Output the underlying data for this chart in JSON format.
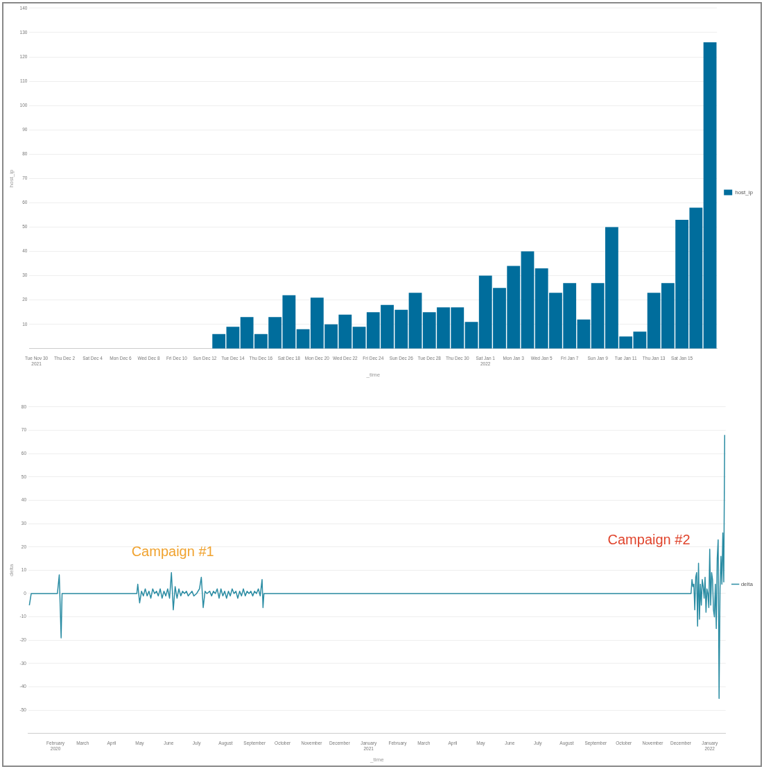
{
  "chart_data": [
    {
      "type": "bar",
      "categories": [
        "Tue Nov 30\n2021",
        null,
        "Thu Dec 2",
        null,
        "Sat Dec 4",
        null,
        "Mon Dec 6",
        null,
        "Wed Dec 8",
        null,
        "Fri Dec 10",
        null,
        "Sun Dec 12",
        null,
        "Tue Dec 14",
        null,
        "Thu Dec 16",
        null,
        "Sat Dec 18",
        null,
        "Mon Dec 20",
        null,
        "Wed Dec 22",
        null,
        "Fri Dec 24",
        null,
        "Sun Dec 26",
        null,
        "Tue Dec 28",
        null,
        "Thu Dec 30",
        null,
        "Sat Jan 1\n2022",
        null,
        "Mon Jan 3",
        null,
        "Wed Jan 5",
        null,
        "Fri Jan 7",
        null,
        "Sun Jan 9",
        null,
        "Tue Jan 11",
        null,
        "Thu Jan 13",
        null,
        "Sat Jan 15",
        null,
        null
      ],
      "series": [
        {
          "name": "host_ip",
          "color": "#006d9c",
          "values": [
            null,
            null,
            null,
            null,
            null,
            null,
            null,
            null,
            null,
            null,
            null,
            null,
            null,
            6,
            9,
            13,
            6,
            13,
            22,
            8,
            21,
            10,
            14,
            9,
            15,
            18,
            16,
            23,
            15,
            17,
            17,
            11,
            30,
            25,
            34,
            40,
            33,
            23,
            27,
            12,
            27,
            50,
            5,
            7,
            23,
            27,
            53,
            58,
            126
          ]
        }
      ],
      "xlabel": "_time",
      "ylabel": "host_ip",
      "ylim": [
        0,
        140
      ],
      "yticks": [
        10,
        20,
        30,
        40,
        50,
        60,
        70,
        80,
        90,
        100,
        110,
        120,
        130,
        140
      ],
      "grid": "y",
      "legend": "right"
    },
    {
      "type": "line",
      "xlabel": "_time",
      "ylabel": "delta",
      "xlim": [
        "2020-01-03",
        "2022-01-18"
      ],
      "xticks": [
        {
          "value": "2020-02",
          "label": "February\n2020"
        },
        {
          "value": "2020-03",
          "label": "March"
        },
        {
          "value": "2020-04",
          "label": "April"
        },
        {
          "value": "2020-05",
          "label": "May"
        },
        {
          "value": "2020-06",
          "label": "June"
        },
        {
          "value": "2020-07",
          "label": "July"
        },
        {
          "value": "2020-08",
          "label": "August"
        },
        {
          "value": "2020-09",
          "label": "September"
        },
        {
          "value": "2020-10",
          "label": "October"
        },
        {
          "value": "2020-11",
          "label": "November"
        },
        {
          "value": "2020-12",
          "label": "December"
        },
        {
          "value": "2021-01",
          "label": "January\n2021"
        },
        {
          "value": "2021-02",
          "label": "February"
        },
        {
          "value": "2021-03",
          "label": "March"
        },
        {
          "value": "2021-04",
          "label": "April"
        },
        {
          "value": "2021-05",
          "label": "May"
        },
        {
          "value": "2021-06",
          "label": "June"
        },
        {
          "value": "2021-07",
          "label": "July"
        },
        {
          "value": "2021-08",
          "label": "August"
        },
        {
          "value": "2021-09",
          "label": "September"
        },
        {
          "value": "2021-10",
          "label": "October"
        },
        {
          "value": "2021-11",
          "label": "November"
        },
        {
          "value": "2021-12",
          "label": "December"
        },
        {
          "value": "2022-01",
          "label": "January\n2022"
        }
      ],
      "ylim": [
        -60,
        80
      ],
      "yticks": [
        -50,
        -40,
        -30,
        -20,
        -10,
        0,
        10,
        20,
        30,
        40,
        50,
        60,
        70,
        80
      ],
      "grid": "y",
      "legend": "right",
      "marker": "none",
      "x": [
        "2020-01-04",
        "2020-01-06",
        "2020-02-03",
        "2020-02-05",
        "2020-02-07",
        "2020-02-08",
        "2020-04-28",
        "2020-04-29",
        "2020-05-01",
        "2020-05-03",
        "2020-05-05",
        "2020-05-07",
        "2020-05-09",
        "2020-05-11",
        "2020-05-13",
        "2020-05-15",
        "2020-05-17",
        "2020-05-19",
        "2020-05-21",
        "2020-05-23",
        "2020-05-25",
        "2020-05-27",
        "2020-05-29",
        "2020-05-31",
        "2020-06-02",
        "2020-06-04",
        "2020-06-06",
        "2020-06-08",
        "2020-06-10",
        "2020-06-12",
        "2020-06-14",
        "2020-06-16",
        "2020-06-18",
        "2020-06-20",
        "2020-06-22",
        "2020-06-24",
        "2020-06-26",
        "2020-06-28",
        "2020-07-01",
        "2020-07-04",
        "2020-07-06",
        "2020-07-08",
        "2020-07-10",
        "2020-07-12",
        "2020-07-15",
        "2020-07-17",
        "2020-07-19",
        "2020-07-21",
        "2020-07-23",
        "2020-07-25",
        "2020-07-27",
        "2020-07-29",
        "2020-07-31",
        "2020-08-02",
        "2020-08-04",
        "2020-08-06",
        "2020-08-08",
        "2020-08-10",
        "2020-08-12",
        "2020-08-14",
        "2020-08-16",
        "2020-08-18",
        "2020-08-20",
        "2020-08-22",
        "2020-08-24",
        "2020-08-26",
        "2020-08-28",
        "2020-08-30",
        "2020-09-01",
        "2020-09-03",
        "2020-09-05",
        "2020-09-07",
        "2020-09-09",
        "2020-09-10",
        "2020-09-11",
        "2021-12-12",
        "2021-12-13",
        "2021-12-14",
        "2021-12-15",
        "2021-12-16",
        "2021-12-17",
        "2021-12-18",
        "2021-12-19",
        "2021-12-20",
        "2021-12-21",
        "2021-12-22",
        "2021-12-23",
        "2021-12-24",
        "2021-12-25",
        "2021-12-26",
        "2021-12-27",
        "2021-12-28",
        "2021-12-29",
        "2021-12-30",
        "2021-12-31",
        "2022-01-01",
        "2022-01-02",
        "2022-01-03",
        "2022-01-04",
        "2022-01-05",
        "2022-01-06",
        "2022-01-07",
        "2022-01-08",
        "2022-01-09",
        "2022-01-10",
        "2022-01-11",
        "2022-01-12",
        "2022-01-13",
        "2022-01-14",
        "2022-01-15",
        "2022-01-16",
        "2022-01-17"
      ],
      "series": [
        {
          "name": "delta",
          "color": "#2a8ca3",
          "values": [
            -5,
            0,
            0,
            8,
            -19,
            0,
            0,
            4,
            -4,
            1,
            -1,
            2,
            -1,
            1,
            -2,
            2,
            0,
            1,
            -1,
            2,
            -2,
            1,
            -1,
            2,
            -2,
            9,
            -7,
            3,
            -2,
            2,
            -1,
            1,
            0,
            1,
            -1,
            0,
            1,
            -1,
            0,
            2,
            7,
            -6,
            1,
            0,
            1,
            -1,
            1,
            0,
            2,
            -2,
            2,
            -1,
            1,
            -2,
            1,
            -1,
            2,
            0,
            1,
            -2,
            1,
            -1,
            2,
            -1,
            1,
            0,
            1,
            -1,
            1,
            0,
            2,
            -1,
            6,
            -6,
            0,
            0,
            6,
            3,
            4,
            -7,
            7,
            9,
            -14,
            13,
            -11,
            4,
            -5,
            6,
            3,
            -2,
            7,
            -8,
            2,
            0,
            -6,
            19,
            -5,
            9,
            6,
            -7,
            -10,
            4,
            -15,
            15,
            23,
            -45,
            2,
            16,
            4,
            26,
            5,
            68
          ]
        }
      ],
      "annotations": [
        "Campaign #1",
        "Campaign #2"
      ]
    }
  ]
}
